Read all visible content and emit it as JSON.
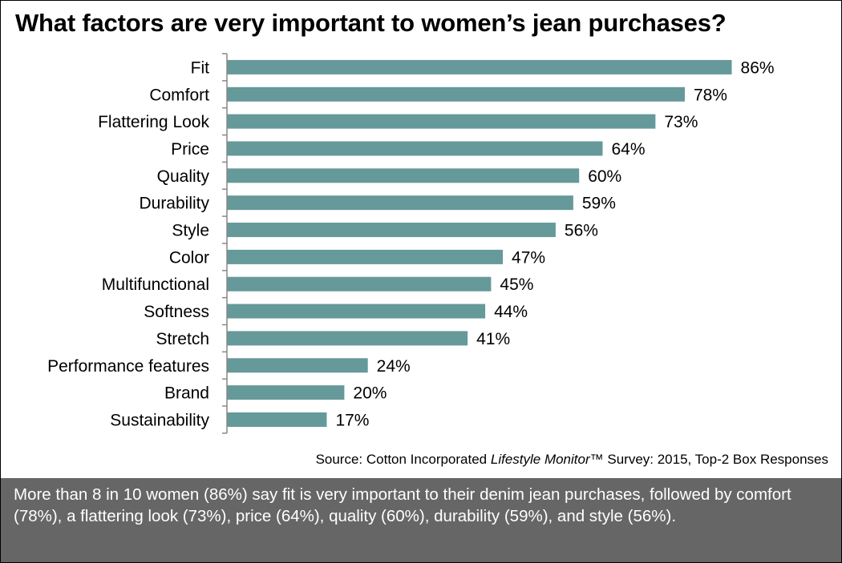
{
  "title": "What factors are very important to women’s jean purchases?",
  "chart_data": {
    "type": "bar",
    "orientation": "horizontal",
    "categories": [
      "Fit",
      "Comfort",
      "Flattering Look",
      "Price",
      "Quality",
      "Durability",
      "Style",
      "Color",
      "Multifunctional",
      "Softness",
      "Stretch",
      "Performance features",
      "Brand",
      "Sustainability"
    ],
    "values": [
      86,
      78,
      73,
      64,
      60,
      59,
      56,
      47,
      45,
      44,
      41,
      24,
      20,
      17
    ],
    "value_labels": [
      "86%",
      "78%",
      "73%",
      "64%",
      "60%",
      "59%",
      "56%",
      "47%",
      "45%",
      "44%",
      "41%",
      "24%",
      "20%",
      "17%"
    ],
    "unit": "%",
    "xlim": [
      0,
      100
    ],
    "grid": false,
    "legend": "none",
    "bar_color": "#669999"
  },
  "source": {
    "prefix": "Source: Cotton Incorporated ",
    "italic": "Lifestyle Monitor",
    "suffix": "™ Survey: 2015, Top-2 Box Responses"
  },
  "summary": "More than 8 in 10 women (86%) say fit is very important to their denim jean purchases, followed by comfort (78%), a flattering look (73%), price (64%), quality (60%), durability (59%), and style (56%).",
  "colors": {
    "summary_bg": "#666666",
    "summary_text": "#ffffff"
  }
}
